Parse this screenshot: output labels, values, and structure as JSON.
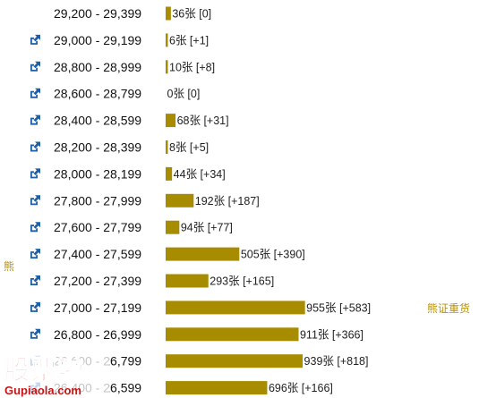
{
  "chart_data": {
    "type": "bar",
    "orientation": "horizontal",
    "title": "",
    "xlabel": "",
    "ylabel": "",
    "categories": [
      "29,200 - 29,399",
      "29,000 - 29,199",
      "28,800 - 28,999",
      "28,600 - 28,799",
      "28,400 - 28,599",
      "28,200 - 28,399",
      "28,000 - 28,199",
      "27,800 - 27,999",
      "27,600 - 27,799",
      "27,400 - 27,599",
      "27,200 - 27,399",
      "27,000 - 27,199",
      "26,800 - 26,999",
      "26,600 - 26,799",
      "26,400 - 26,599"
    ],
    "values": [
      36,
      6,
      10,
      0,
      68,
      8,
      44,
      192,
      94,
      505,
      293,
      955,
      911,
      939,
      696
    ],
    "value_labels": [
      "36张 [0]",
      "6张 [+1]",
      "10张 [+8]",
      "0张 [0]",
      "68张 [+31]",
      "8张 [+5]",
      "44张 [+34]",
      "192张 [+187]",
      "94张 [+77]",
      "505张 [+390]",
      "293张 [+165]",
      "955张 [+583]",
      "911张 [+366]",
      "939张 [+818]",
      "696张 [+166]"
    ],
    "xlim": [
      0,
      1000
    ],
    "grid": false,
    "bar_color": "#a88c00",
    "side_label": "熊",
    "annotation": "熊证重货"
  },
  "icon": "external-link-icon",
  "link_color": "#1e5fa8",
  "watermark": {
    "name": "股票啦",
    "domain": "Gupiaola.com"
  }
}
